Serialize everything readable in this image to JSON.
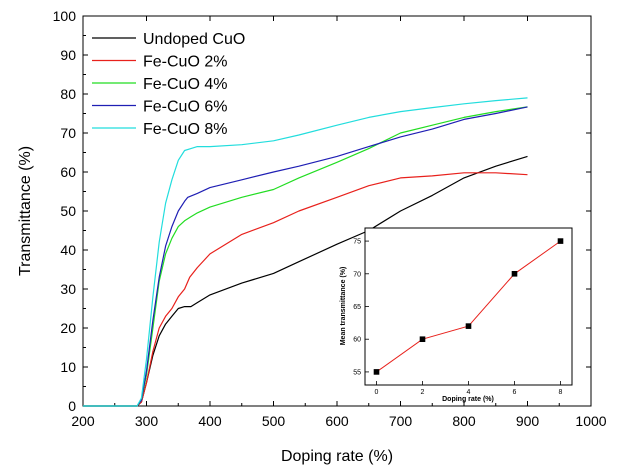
{
  "chart_data": [
    {
      "type": "line",
      "xlabel": "Doping rate (%)",
      "ylabel": "Transmittance (%)",
      "xlim": [
        200,
        1000
      ],
      "ylim": [
        0,
        100
      ],
      "xticks": [
        200,
        300,
        400,
        500,
        600,
        700,
        800,
        900,
        1000
      ],
      "yticks": [
        0,
        10,
        20,
        30,
        40,
        50,
        60,
        70,
        80,
        90,
        100
      ],
      "grid": false,
      "legend": "top-left",
      "series": [
        {
          "name": "Undoped CuO",
          "color": "#000000",
          "points": [
            [
              200,
              0
            ],
            [
              285,
              0
            ],
            [
              292,
              1
            ],
            [
              300,
              6
            ],
            [
              310,
              13
            ],
            [
              320,
              18
            ],
            [
              330,
              21
            ],
            [
              340,
              23
            ],
            [
              350,
              25
            ],
            [
              360,
              25.5
            ],
            [
              370,
              25.5
            ],
            [
              380,
              26.5
            ],
            [
              400,
              28.5
            ],
            [
              450,
              31.5
            ],
            [
              500,
              34
            ],
            [
              540,
              37
            ],
            [
              600,
              41.5
            ],
            [
              650,
              45
            ],
            [
              700,
              50
            ],
            [
              750,
              54
            ],
            [
              800,
              58.5
            ],
            [
              850,
              61.5
            ],
            [
              900,
              64
            ]
          ]
        },
        {
          "name": "Fe-CuO 2%",
          "color": "#e8211c",
          "points": [
            [
              200,
              0
            ],
            [
              285,
              0
            ],
            [
              292,
              1
            ],
            [
              300,
              6
            ],
            [
              310,
              14
            ],
            [
              320,
              20
            ],
            [
              330,
              23
            ],
            [
              340,
              25
            ],
            [
              350,
              28
            ],
            [
              360,
              30
            ],
            [
              368,
              33
            ],
            [
              380,
              35.5
            ],
            [
              400,
              39
            ],
            [
              450,
              44
            ],
            [
              500,
              47
            ],
            [
              540,
              50
            ],
            [
              600,
              53.5
            ],
            [
              650,
              56.5
            ],
            [
              700,
              58.5
            ],
            [
              750,
              59
            ],
            [
              800,
              59.8
            ],
            [
              850,
              59.8
            ],
            [
              900,
              59.3
            ]
          ]
        },
        {
          "name": "Fe-CuO 4%",
          "color": "#22dd22",
          "points": [
            [
              200,
              0
            ],
            [
              285,
              0
            ],
            [
              292,
              1.5
            ],
            [
              300,
              8
            ],
            [
              310,
              20
            ],
            [
              320,
              32
            ],
            [
              330,
              39
            ],
            [
              340,
              43
            ],
            [
              350,
              46
            ],
            [
              360,
              47.5
            ],
            [
              370,
              48.5
            ],
            [
              380,
              49.5
            ],
            [
              400,
              51
            ],
            [
              450,
              53.5
            ],
            [
              500,
              55.5
            ],
            [
              540,
              58.5
            ],
            [
              600,
              62.5
            ],
            [
              650,
              66
            ],
            [
              700,
              70
            ],
            [
              750,
              72
            ],
            [
              800,
              74
            ],
            [
              850,
              75.5
            ],
            [
              900,
              76.7
            ]
          ]
        },
        {
          "name": "Fe-CuO 6%",
          "color": "#1f1fb4",
          "points": [
            [
              200,
              0
            ],
            [
              285,
              0
            ],
            [
              292,
              1.5
            ],
            [
              300,
              9
            ],
            [
              310,
              22
            ],
            [
              320,
              33
            ],
            [
              330,
              41
            ],
            [
              340,
              46
            ],
            [
              350,
              50
            ],
            [
              360,
              52.5
            ],
            [
              365,
              53.5
            ],
            [
              380,
              54.5
            ],
            [
              400,
              56
            ],
            [
              450,
              58
            ],
            [
              500,
              60
            ],
            [
              540,
              61.5
            ],
            [
              600,
              64
            ],
            [
              650,
              66.5
            ],
            [
              700,
              69
            ],
            [
              750,
              71
            ],
            [
              800,
              73.5
            ],
            [
              850,
              75
            ],
            [
              900,
              76.7
            ]
          ]
        },
        {
          "name": "Fe-CuO 8%",
          "color": "#22dddd",
          "points": [
            [
              200,
              0
            ],
            [
              285,
              0
            ],
            [
              292,
              2
            ],
            [
              300,
              12
            ],
            [
              310,
              28
            ],
            [
              320,
              42
            ],
            [
              330,
              52
            ],
            [
              340,
              58
            ],
            [
              350,
              63
            ],
            [
              360,
              65.5
            ],
            [
              370,
              66
            ],
            [
              380,
              66.5
            ],
            [
              400,
              66.5
            ],
            [
              450,
              67
            ],
            [
              500,
              68
            ],
            [
              540,
              69.5
            ],
            [
              600,
              72
            ],
            [
              650,
              74
            ],
            [
              700,
              75.5
            ],
            [
              750,
              76.5
            ],
            [
              800,
              77.5
            ],
            [
              850,
              78.3
            ],
            [
              900,
              79
            ]
          ]
        }
      ]
    },
    {
      "type": "line",
      "xlabel": "Doping rate (%)",
      "ylabel": "Mean transmittance (%)",
      "xlim": [
        -0.5,
        8.5
      ],
      "ylim": [
        53,
        77
      ],
      "xticks": [
        0,
        2,
        4,
        6,
        8
      ],
      "yticks": [
        55,
        60,
        65,
        70,
        75
      ],
      "grid": false,
      "series": [
        {
          "color": "#e8211c",
          "marker_color": "#000000",
          "points": [
            [
              0,
              55
            ],
            [
              2,
              60
            ],
            [
              4,
              62
            ],
            [
              6,
              70
            ],
            [
              8,
              75
            ]
          ]
        }
      ]
    }
  ]
}
